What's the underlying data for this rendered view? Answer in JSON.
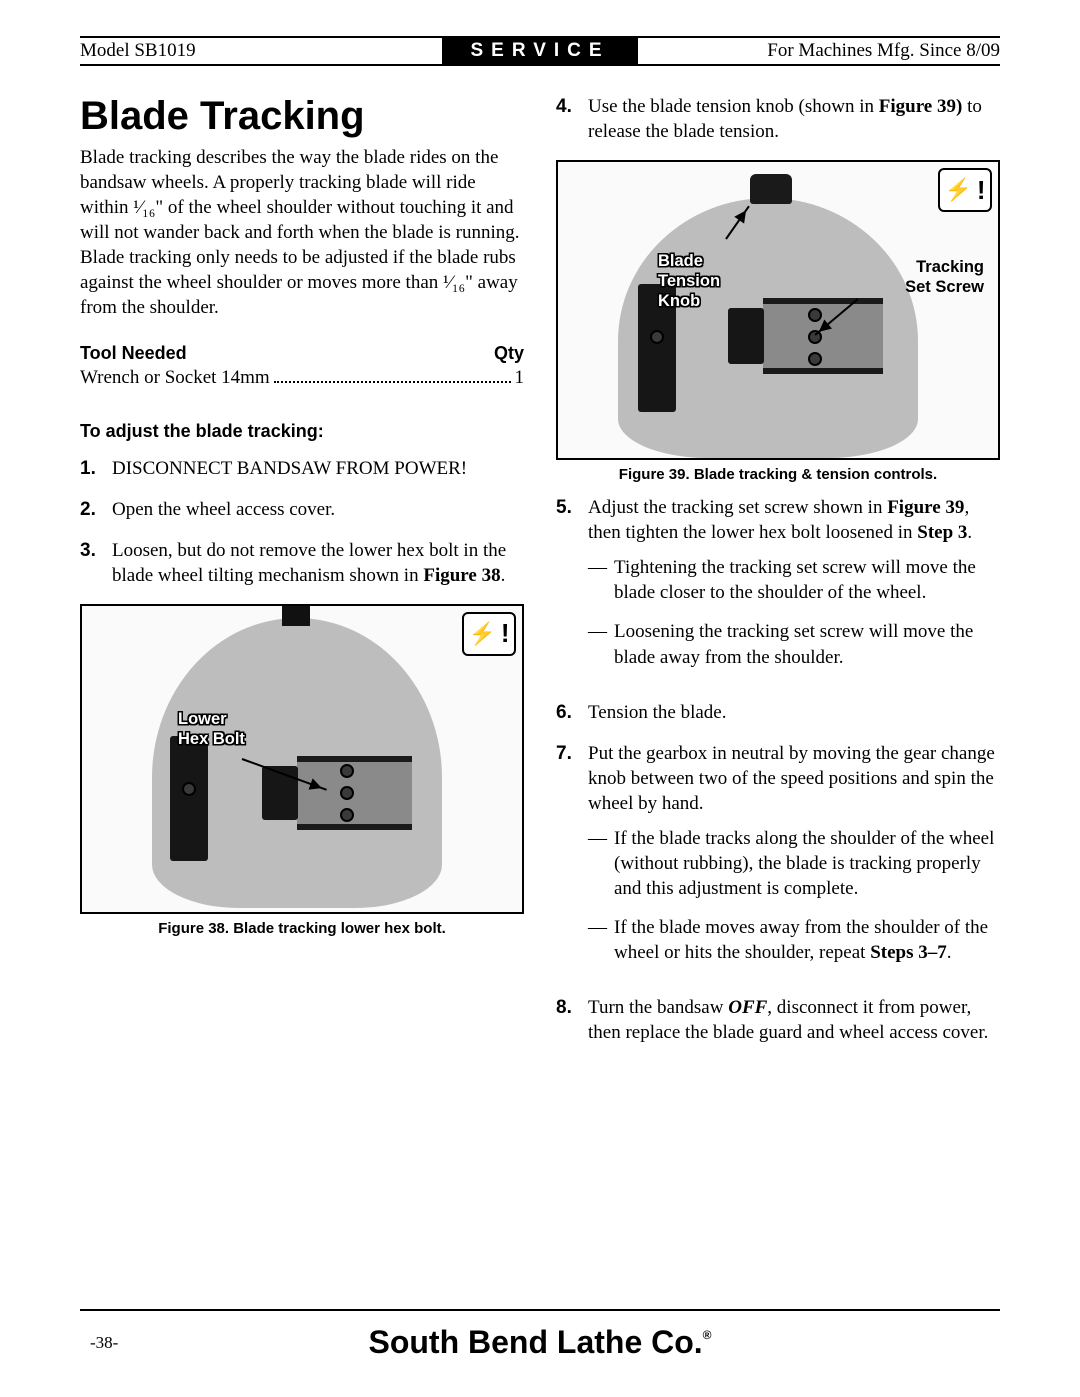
{
  "header": {
    "left": "Model SB1019",
    "center": "SERVICE",
    "right": "For Machines Mfg. Since 8/09"
  },
  "heading": "Blade Tracking",
  "intro": "Blade tracking describes the way the blade rides on the bandsaw wheels. A properly tracking blade will ride within ¹⁄₁₆\" of the wheel shoulder without touching it and will not wander back and forth when the blade is running. Blade tracking only needs to be adjusted if the blade rubs against the wheel shoulder or moves more than ¹⁄₁₆\" away from the shoulder.",
  "tool_header": {
    "label": "Tool Needed",
    "qty": "Qty"
  },
  "tool_item": {
    "name": "Wrench or Socket 14mm",
    "qty": "1"
  },
  "subhead": "To adjust the blade tracking:",
  "steps_left": [
    {
      "n": "1.",
      "t": "DISCONNECT BANDSAW FROM POWER!"
    },
    {
      "n": "2.",
      "t": "Open the wheel access cover."
    },
    {
      "n": "3.",
      "t": "Loosen, but do not remove the lower hex bolt in the blade wheel tilting mechanism shown in <b>Figure 38</b>."
    }
  ],
  "fig38": {
    "caption": "Figure 38. Blade tracking lower hex bolt.",
    "callout": "Lower\nHex Bolt"
  },
  "steps_right_first": {
    "n": "4.",
    "t": "Use the blade tension knob (shown in <b>Figure 39)</b> to release the blade tension."
  },
  "fig39": {
    "caption": "Figure 39. Blade tracking & tension controls.",
    "callout1": "Blade\nTension\nKnob",
    "callout2": "Tracking\nSet Screw"
  },
  "steps_right_rest": [
    {
      "n": "5.",
      "t": "Adjust the tracking set screw shown in <b>Figure 39</b>, then tighten the lower hex bolt loosened in <b>Step 3</b>.",
      "dashes": [
        "Tightening the tracking set screw will move the blade closer to the shoulder of the wheel.",
        "Loosening the tracking set screw will move the blade away from the shoulder."
      ]
    },
    {
      "n": "6.",
      "t": "Tension the blade."
    },
    {
      "n": "7.",
      "t": "Put the gearbox in neutral by moving the gear change knob between two of the speed positions and spin the wheel by hand.",
      "dashes": [
        "If the blade tracks along the shoulder of the wheel (without rubbing), the blade is tracking properly and this adjustment is complete.",
        "If the blade moves away from the shoulder of the wheel or hits the shoulder, repeat <b>Steps 3–7</b>."
      ]
    },
    {
      "n": "8.",
      "t": "Turn the bandsaw <b><i>OFF</i></b>, disconnect it from power, then replace the blade guard and wheel access cover."
    }
  ],
  "footer": {
    "page": "-38-",
    "brand": "South Bend Lathe Co."
  }
}
